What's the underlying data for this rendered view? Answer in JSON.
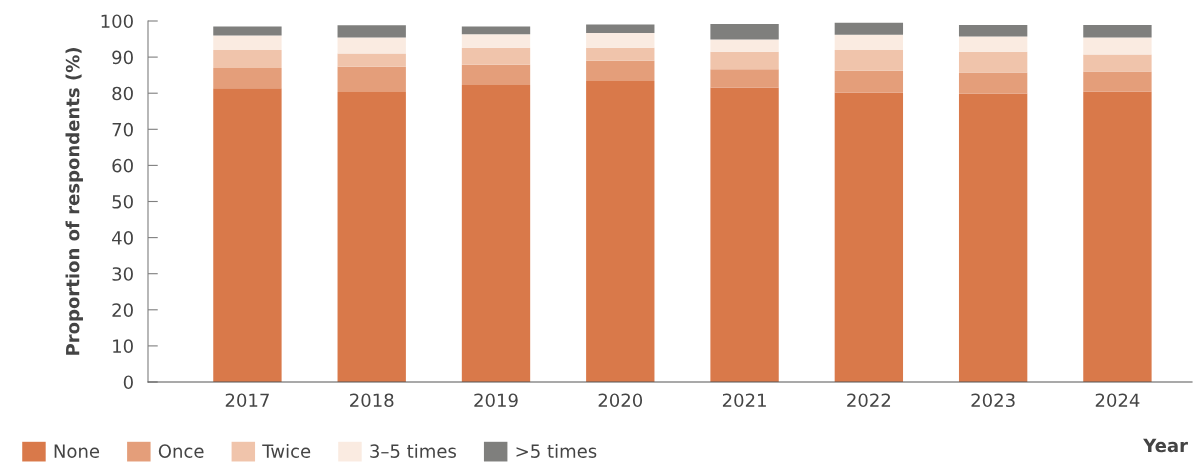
{
  "chart_data": {
    "type": "bar",
    "stacked": true,
    "xlabel": "Year",
    "ylabel": "Proportion of respondents (%)",
    "categories": [
      "2017",
      "2018",
      "2019",
      "2020",
      "2021",
      "2022",
      "2023",
      "2024"
    ],
    "series": [
      {
        "name": "None",
        "color": "#d9794a",
        "values": [
          81.4,
          80.3,
          82.3,
          83.4,
          81.6,
          80.2,
          79.9,
          80.5
        ]
      },
      {
        "name": "Once",
        "color": "#e49e7a",
        "values": [
          5.6,
          7.0,
          5.6,
          5.6,
          5.0,
          6.0,
          5.8,
          5.5
        ]
      },
      {
        "name": "Twice",
        "color": "#f0c4ab",
        "values": [
          5.0,
          3.7,
          4.7,
          3.6,
          4.9,
          5.8,
          5.8,
          4.7
        ]
      },
      {
        "name": "3–5 times",
        "color": "#faebe1",
        "values": [
          4.0,
          4.4,
          3.7,
          4.1,
          3.4,
          4.2,
          4.2,
          4.7
        ]
      },
      {
        "name": ">5 times",
        "color": "#7f7f7d",
        "values": [
          2.5,
          3.4,
          2.2,
          2.3,
          4.3,
          3.3,
          3.2,
          3.5
        ]
      }
    ],
    "ylim": [
      0,
      100
    ],
    "yticks": [
      0,
      10,
      20,
      30,
      40,
      50,
      60,
      70,
      80,
      90,
      100
    ],
    "grid": false,
    "legend": "bottom left"
  }
}
